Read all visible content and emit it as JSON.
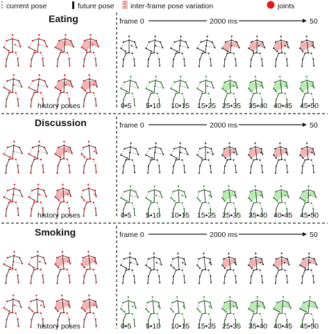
{
  "legend": {
    "current_pose": "current pose",
    "future_pose": "future pose",
    "variation": "inter-frame pose variation",
    "joints": "joints",
    "colors": {
      "history": "#cc2222",
      "future": "#2e9d2e",
      "variation": "#f2a0a0",
      "future_variation": "#a8e6a0",
      "joint": "#e01b1b"
    }
  },
  "panels": [
    {
      "title": "Eating",
      "frame_label": "frame 0",
      "duration_label": "2000 ms",
      "end_label": "50",
      "history_label": "history poses",
      "time_labels": [
        "0•5",
        "5•10",
        "10•15",
        "15•25",
        "25•35",
        "35•40",
        "40•45",
        "45•50"
      ]
    },
    {
      "title": "Discussion",
      "frame_label": "frame 0",
      "duration_label": "2000 ms",
      "end_label": "50",
      "history_label": "history poses",
      "time_labels": [
        "0•5",
        "5•10",
        "10•15",
        "15•25",
        "25•35",
        "35•40",
        "40•45",
        "45•50"
      ]
    },
    {
      "title": "Smoking",
      "frame_label": "frame 0",
      "duration_label": "2000 ms",
      "end_label": "50",
      "history_label": "history poses",
      "time_labels": [
        "0•5",
        "5•10",
        "10•15",
        "15•25",
        "25•35",
        "35•40",
        "40•45",
        "45•50"
      ]
    }
  ]
}
